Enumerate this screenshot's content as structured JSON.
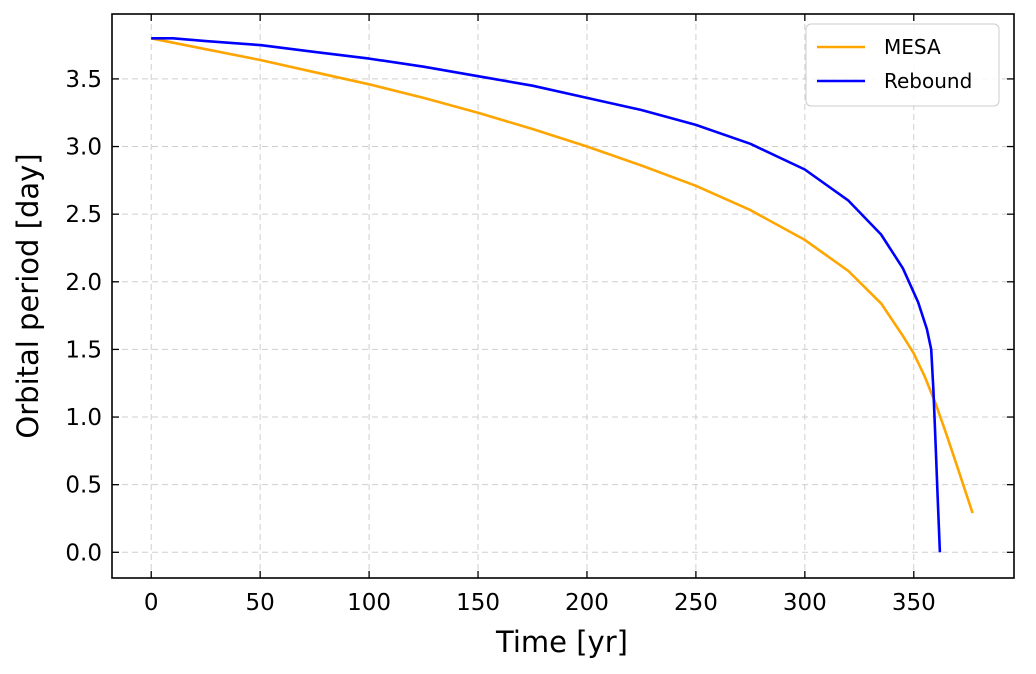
{
  "chart_data": {
    "type": "line",
    "title": "",
    "xlabel": "Time [yr]",
    "ylabel": "Orbital period [day]",
    "xlim": [
      -18,
      396
    ],
    "ylim": [
      -0.19,
      3.98
    ],
    "xticks": [
      0,
      50,
      100,
      150,
      200,
      250,
      300,
      350
    ],
    "yticks": [
      0.0,
      0.5,
      1.0,
      1.5,
      2.0,
      2.5,
      3.0,
      3.5
    ],
    "xtick_labels": [
      "0",
      "50",
      "100",
      "150",
      "200",
      "250",
      "300",
      "350"
    ],
    "ytick_labels": [
      "0.0",
      "0.5",
      "1.0",
      "1.5",
      "2.0",
      "2.5",
      "3.0",
      "3.5"
    ],
    "grid": true,
    "grid_style": "dashed",
    "legend_position": "top-right",
    "series": [
      {
        "name": "MESA",
        "color": "#FFA500",
        "x": [
          0,
          25,
          50,
          75,
          100,
          125,
          150,
          175,
          200,
          225,
          250,
          275,
          300,
          320,
          335,
          345,
          350,
          355,
          360,
          365,
          370,
          377
        ],
        "y": [
          3.8,
          3.72,
          3.64,
          3.55,
          3.46,
          3.36,
          3.25,
          3.13,
          3.0,
          2.86,
          2.71,
          2.53,
          2.31,
          2.08,
          1.84,
          1.6,
          1.47,
          1.3,
          1.1,
          0.87,
          0.63,
          0.29
        ]
      },
      {
        "name": "Rebound",
        "color": "#0000FF",
        "x": [
          0,
          10,
          25,
          50,
          75,
          100,
          125,
          150,
          175,
          200,
          225,
          250,
          275,
          300,
          320,
          335,
          345,
          352,
          356,
          358,
          359,
          360,
          361,
          362
        ],
        "y": [
          3.8,
          3.8,
          3.78,
          3.75,
          3.7,
          3.65,
          3.59,
          3.52,
          3.45,
          3.36,
          3.27,
          3.16,
          3.02,
          2.83,
          2.6,
          2.35,
          2.1,
          1.85,
          1.65,
          1.5,
          1.2,
          0.8,
          0.4,
          0.0
        ]
      }
    ]
  }
}
